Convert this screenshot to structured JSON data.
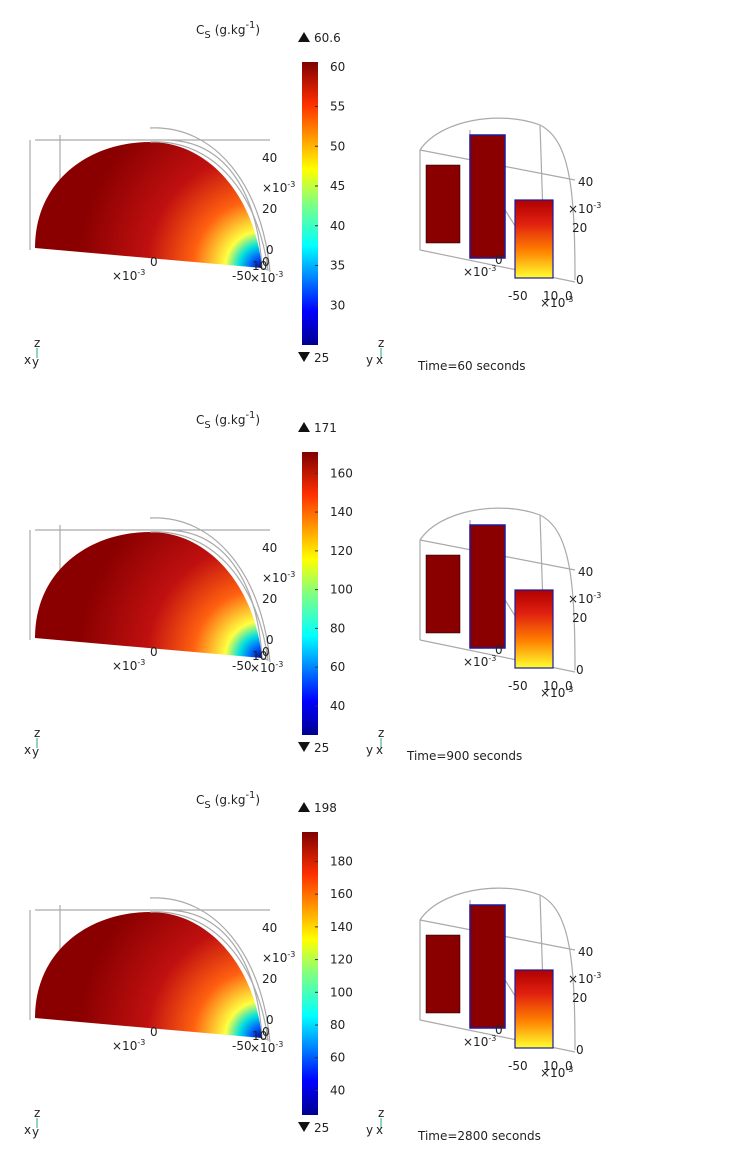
{
  "panels": [
    {
      "colorbar": {
        "title": {
          "symbol": "C",
          "sub": "S",
          "unit": "(g.kg",
          "sup": "-1",
          "close": ")"
        },
        "max": 60.6,
        "min": 25,
        "ticks": [
          30,
          35,
          40,
          45,
          50,
          55,
          60
        ]
      },
      "left_labels": [
        "40",
        "20",
        "0",
        "0",
        "-50",
        "10",
        "0"
      ],
      "right_labels": [
        "40",
        "20",
        "0",
        "0",
        "-50",
        "10",
        "0"
      ],
      "exponent": {
        "base": "×10",
        "sup": "-3"
      },
      "time": "Time=60 seconds"
    },
    {
      "colorbar": {
        "title": {
          "symbol": "C",
          "sub": "S",
          "unit": "(g.kg",
          "sup": "-1",
          "close": ")"
        },
        "max": 171,
        "min": 25,
        "ticks": [
          40,
          60,
          80,
          100,
          120,
          140,
          160
        ]
      },
      "left_labels": [
        "40",
        "20",
        "0",
        "0",
        "-50",
        "10",
        "0"
      ],
      "right_labels": [
        "40",
        "20",
        "0",
        "0",
        "-50",
        "10",
        "0"
      ],
      "exponent": {
        "base": "×10",
        "sup": "-3"
      },
      "time": "Time=900 seconds"
    },
    {
      "colorbar": {
        "title": {
          "symbol": "C",
          "sub": "S",
          "unit": "(g.kg",
          "sup": "-1",
          "close": ")"
        },
        "max": 198,
        "min": 25,
        "ticks": [
          40,
          60,
          80,
          100,
          120,
          140,
          160,
          180
        ]
      },
      "left_labels": [
        "40",
        "20",
        "0",
        "0",
        "-50",
        "10",
        "0"
      ],
      "right_labels": [
        "40",
        "20",
        "0",
        "0",
        "-50",
        "10",
        "0"
      ],
      "exponent": {
        "base": "×10",
        "sup": "-3"
      },
      "time": "Time=2800 seconds"
    }
  ],
  "triad": {
    "left": [
      "z",
      "x",
      "y"
    ],
    "right": [
      "z",
      "y",
      "x"
    ]
  }
}
